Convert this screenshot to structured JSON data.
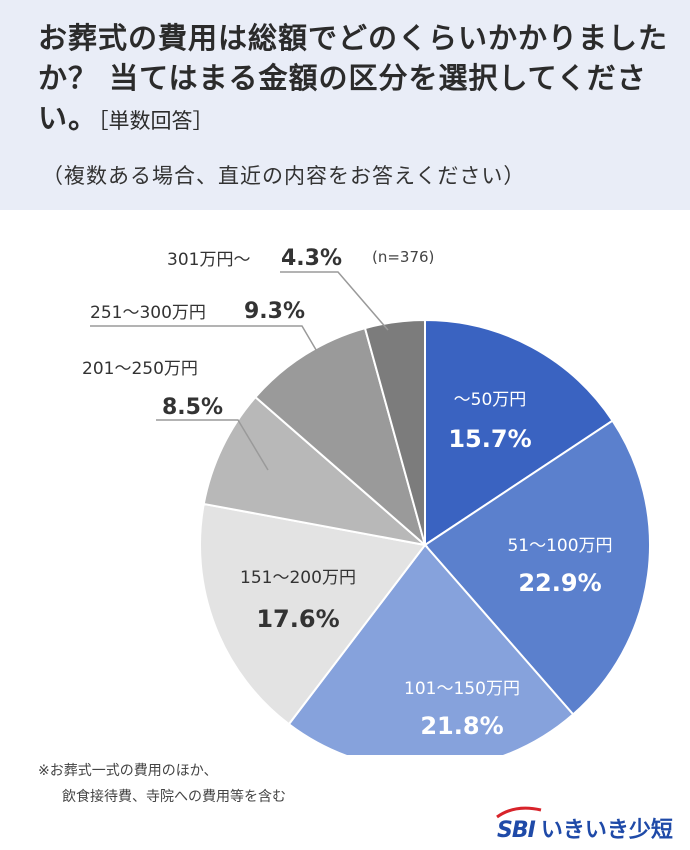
{
  "header": {
    "title": "お葬式の費用は総額でどのくらいかかりましたか？ 当てはまる金額の区分を選択してください。",
    "title_suffix": "［単数回答］",
    "subtitle": "（複数ある場合、直近の内容をお答えください）"
  },
  "chart_data": {
    "type": "pie",
    "n_label": "(n=376)",
    "start": "12 o'clock, clockwise",
    "slices": [
      {
        "label": "〜50万円",
        "value": 15.7,
        "value_label": "15.7%",
        "color": "#3a63c1"
      },
      {
        "label": "51〜100万円",
        "value": 22.9,
        "value_label": "22.9%",
        "color": "#5b80cd"
      },
      {
        "label": "101〜150万円",
        "value": 21.8,
        "value_label": "21.8%",
        "color": "#86a2dc"
      },
      {
        "label": "151〜200万円",
        "value": 17.6,
        "value_label": "17.6%",
        "color": "#e3e3e3"
      },
      {
        "label": "201〜250万円",
        "value": 8.5,
        "value_label": "8.5%",
        "color": "#b8b8b8"
      },
      {
        "label": "251〜300万円",
        "value": 9.3,
        "value_label": "9.3%",
        "color": "#9a9a9a"
      },
      {
        "label": "301万円〜",
        "value": 4.3,
        "value_label": "4.3%",
        "color": "#7c7c7c"
      }
    ]
  },
  "footnote": {
    "line1": "※お葬式一式の費用のほか、",
    "line2": "飲食接待費、寺院への費用等を含む"
  },
  "logo": {
    "mark": "SBI",
    "text": "いきいき少短"
  }
}
